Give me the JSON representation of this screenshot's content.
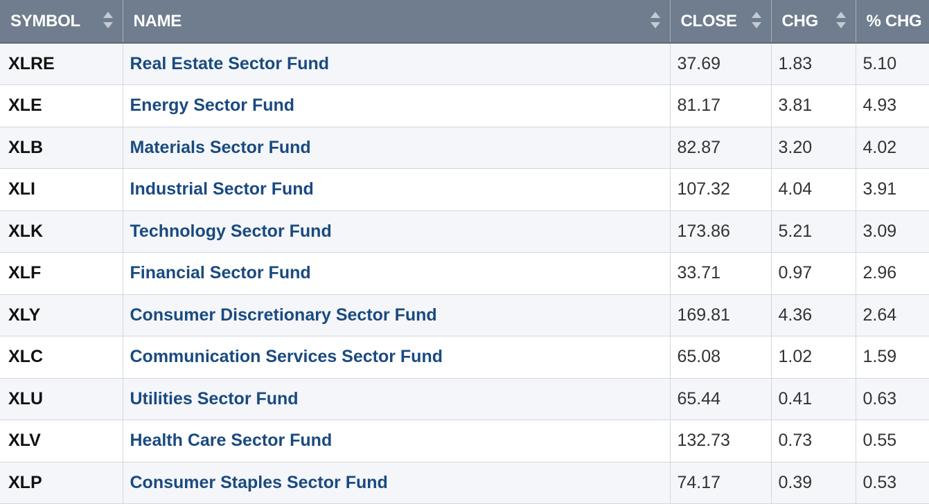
{
  "table": {
    "headers": {
      "symbol": "SYMBOL",
      "name": "NAME",
      "close": "CLOSE",
      "chg": "CHG",
      "pct_chg": "% CHG"
    },
    "rows": [
      {
        "symbol": "XLRE",
        "name": "Real Estate Sector Fund",
        "close": "37.69",
        "chg": "1.83",
        "pct_chg": "5.10"
      },
      {
        "symbol": "XLE",
        "name": "Energy Sector Fund",
        "close": "81.17",
        "chg": "3.81",
        "pct_chg": "4.93"
      },
      {
        "symbol": "XLB",
        "name": "Materials Sector Fund",
        "close": "82.87",
        "chg": "3.20",
        "pct_chg": "4.02"
      },
      {
        "symbol": "XLI",
        "name": "Industrial Sector Fund",
        "close": "107.32",
        "chg": "4.04",
        "pct_chg": "3.91"
      },
      {
        "symbol": "XLK",
        "name": "Technology Sector Fund",
        "close": "173.86",
        "chg": "5.21",
        "pct_chg": "3.09"
      },
      {
        "symbol": "XLF",
        "name": "Financial Sector Fund",
        "close": "33.71",
        "chg": "0.97",
        "pct_chg": "2.96"
      },
      {
        "symbol": "XLY",
        "name": "Consumer Discretionary Sector Fund",
        "close": "169.81",
        "chg": "4.36",
        "pct_chg": "2.64"
      },
      {
        "symbol": "XLC",
        "name": "Communication Services Sector Fund",
        "close": "65.08",
        "chg": "1.02",
        "pct_chg": "1.59"
      },
      {
        "symbol": "XLU",
        "name": "Utilities Sector Fund",
        "close": "65.44",
        "chg": "0.41",
        "pct_chg": "0.63"
      },
      {
        "symbol": "XLV",
        "name": "Health Care Sector Fund",
        "close": "132.73",
        "chg": "0.73",
        "pct_chg": "0.55"
      },
      {
        "symbol": "XLP",
        "name": "Consumer Staples Sector Fund",
        "close": "74.17",
        "chg": "0.39",
        "pct_chg": "0.53"
      }
    ]
  },
  "icons": {
    "sort": "sort-arrows-icon"
  },
  "colors": {
    "header_bg": "#6f7d8e",
    "header_text": "#ffffff",
    "link": "#1a4a80",
    "row_alt": "#f4f6f9",
    "grid": "#d2d7de"
  }
}
